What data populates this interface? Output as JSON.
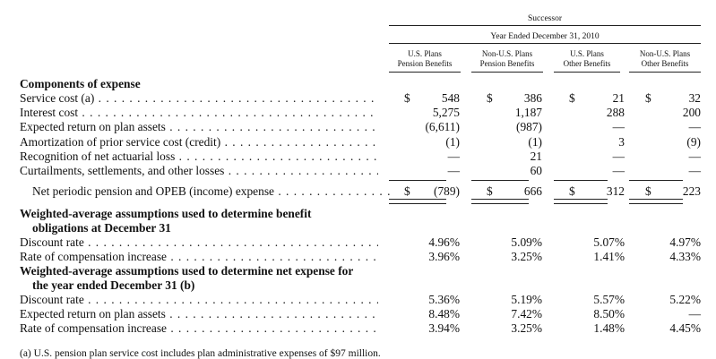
{
  "header": {
    "successor": "Successor",
    "period": "Year Ended December 31, 2010",
    "columns": [
      [
        "U.S. Plans",
        "Pension Benefits"
      ],
      [
        "Non-U.S. Plans",
        "Pension Benefits"
      ],
      [
        "U.S. Plans",
        "Other Benefits"
      ],
      [
        "Non-U.S. Plans",
        "Other Benefits"
      ]
    ]
  },
  "components": {
    "title": "Components of expense",
    "rows": [
      {
        "label": "Service cost (a)",
        "cells": [
          [
            "$",
            "548"
          ],
          [
            "$",
            "386"
          ],
          [
            "$",
            "21"
          ],
          [
            "$",
            "32"
          ]
        ]
      },
      {
        "label": "Interest cost",
        "cells": [
          [
            "",
            "5,275"
          ],
          [
            "",
            "1,187"
          ],
          [
            "",
            "288"
          ],
          [
            "",
            "200"
          ]
        ]
      },
      {
        "label": "Expected return on plan assets",
        "cells": [
          [
            "",
            "(6,611)"
          ],
          [
            "",
            "(987)"
          ],
          [
            "",
            "—"
          ],
          [
            "",
            "—"
          ]
        ]
      },
      {
        "label": "Amortization of prior service cost (credit)",
        "cells": [
          [
            "",
            "(1)"
          ],
          [
            "",
            "(1)"
          ],
          [
            "",
            "3"
          ],
          [
            "",
            "(9)"
          ]
        ]
      },
      {
        "label": "Recognition of net actuarial loss",
        "cells": [
          [
            "",
            "—"
          ],
          [
            "",
            "21"
          ],
          [
            "",
            "—"
          ],
          [
            "",
            "—"
          ]
        ]
      },
      {
        "label": "Curtailments, settlements, and other losses",
        "cells": [
          [
            "",
            "—"
          ],
          [
            "",
            "60"
          ],
          [
            "",
            "—"
          ],
          [
            "",
            "—"
          ]
        ]
      },
      {
        "label": "Net periodic pension and OPEB (income) expense",
        "cells": [
          [
            "$",
            "(789)"
          ],
          [
            "$",
            "666"
          ],
          [
            "$",
            "312"
          ],
          [
            "$",
            "223"
          ]
        ]
      }
    ]
  },
  "assumptions_benefit": {
    "title_line1": "Weighted-average assumptions used to determine benefit",
    "title_line2": "obligations at December 31",
    "rows": [
      {
        "label": "Discount rate",
        "cells": [
          "4.96%",
          "5.09%",
          "5.07%",
          "4.97%"
        ]
      },
      {
        "label": "Rate of compensation increase",
        "cells": [
          "3.96%",
          "3.25%",
          "1.41%",
          "4.33%"
        ]
      }
    ]
  },
  "assumptions_expense": {
    "title_line1": "Weighted-average assumptions used to determine net expense for",
    "title_line2": "the year ended December 31 (b)",
    "rows": [
      {
        "label": "Discount rate",
        "cells": [
          "5.36%",
          "5.19%",
          "5.57%",
          "5.22%"
        ]
      },
      {
        "label": "Expected return on plan assets",
        "cells": [
          "8.48%",
          "7.42%",
          "8.50%",
          "—"
        ]
      },
      {
        "label": "Rate of compensation increase",
        "cells": [
          "3.94%",
          "3.25%",
          "1.48%",
          "4.45%"
        ]
      }
    ]
  },
  "footnote": "(a)   U.S. pension plan service cost includes plan administrative expenses of $97 million."
}
